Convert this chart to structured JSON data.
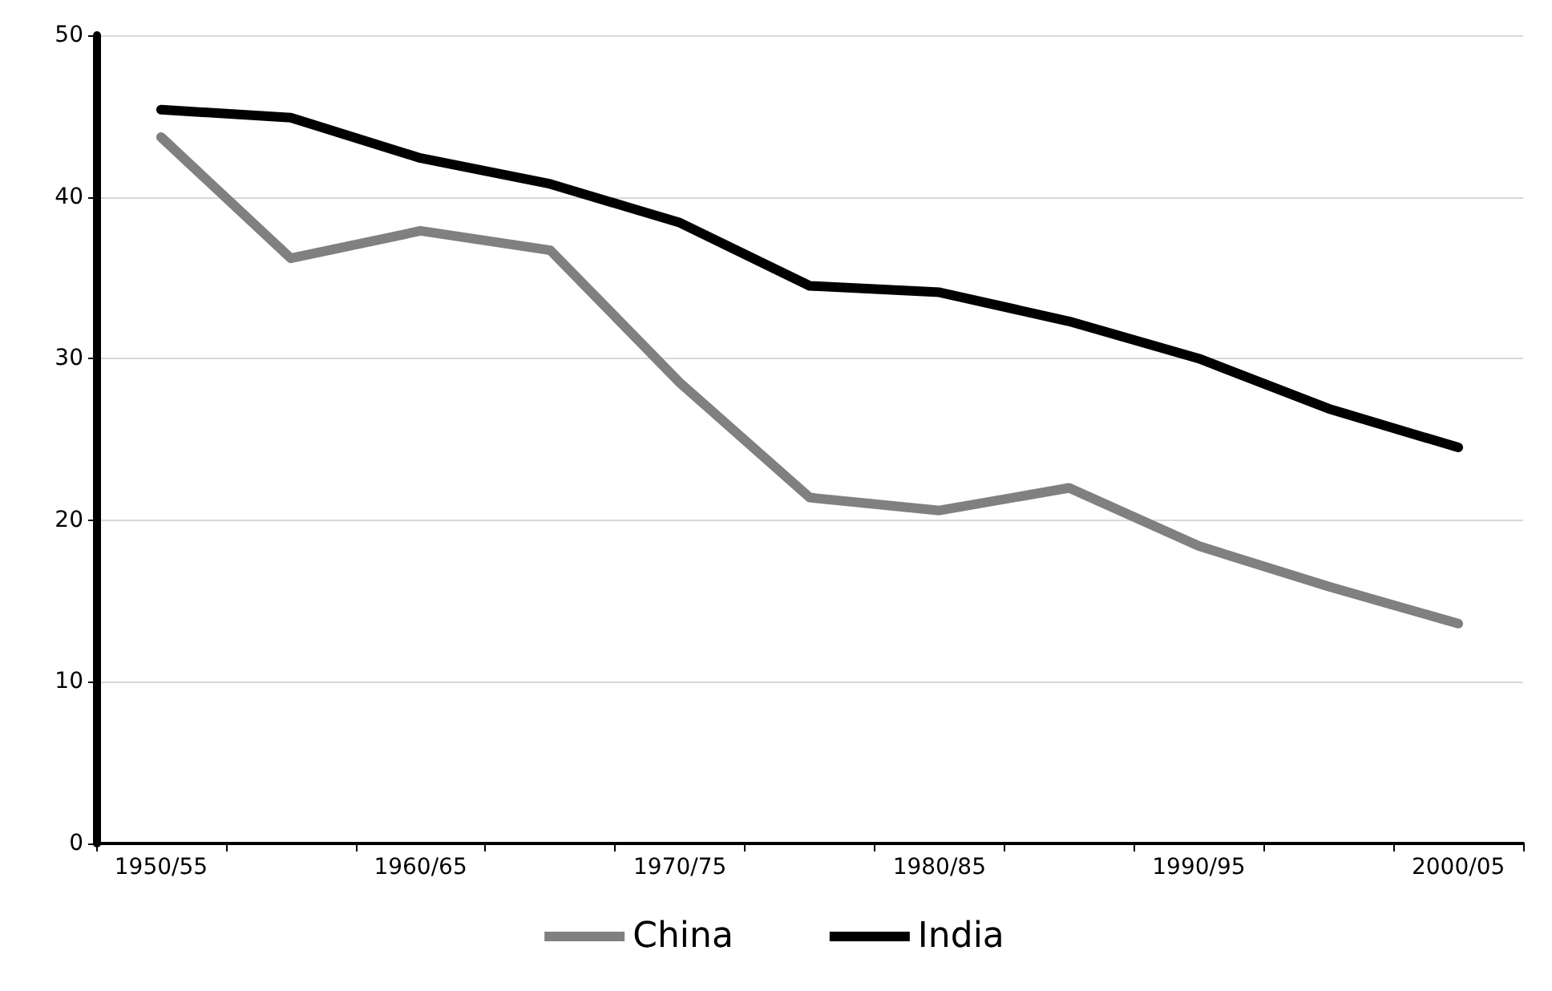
{
  "chart_data": {
    "type": "line",
    "categories": [
      "1950/55",
      null,
      "1960/65",
      null,
      "1970/75",
      null,
      "1980/85",
      null,
      "1990/95",
      null,
      "2000/05"
    ],
    "series": [
      {
        "name": "China",
        "color": "#808080",
        "values": [
          43.7,
          36.2,
          37.9,
          36.7,
          28.5,
          21.4,
          20.6,
          22.0,
          18.4,
          15.9,
          13.6
        ]
      },
      {
        "name": "India",
        "color": "#000000",
        "values": [
          45.4,
          44.9,
          42.4,
          40.8,
          38.4,
          34.5,
          34.1,
          32.3,
          30.0,
          26.9,
          24.5
        ]
      }
    ],
    "ylim": [
      0,
      50
    ],
    "yticks": [
      0,
      10,
      20,
      30,
      40,
      50
    ],
    "grid": "y",
    "legend": "bottom",
    "marker": "none",
    "line_style": "solid"
  }
}
